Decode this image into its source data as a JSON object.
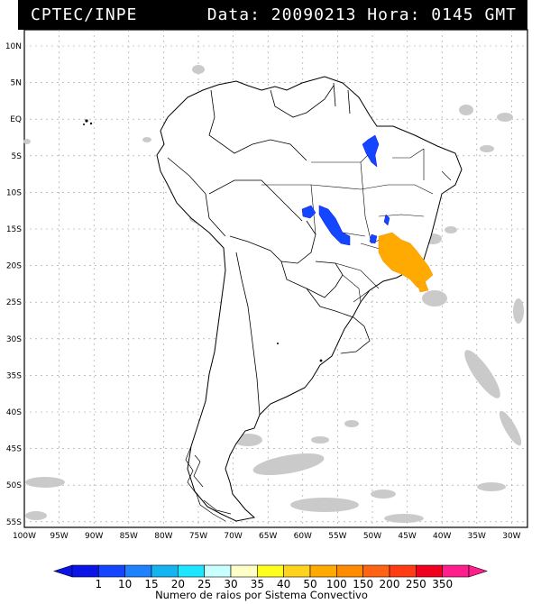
{
  "header": {
    "org": "CPTEC/INPE",
    "datetime": "Data: 20090213 Hora: 0145 GMT"
  },
  "map": {
    "lat_labels": [
      "10N",
      "5N",
      "EQ",
      "5S",
      "10S",
      "15S",
      "20S",
      "25S",
      "30S",
      "35S",
      "40S",
      "45S",
      "50S",
      "55S"
    ],
    "lon_labels": [
      "100W",
      "95W",
      "90W",
      "85W",
      "80W",
      "75W",
      "70W",
      "65W",
      "60W",
      "55W",
      "50W",
      "45W",
      "40W",
      "35W",
      "30W"
    ],
    "cloud_color": "#c8c8c8",
    "coastline_color": "#000000",
    "grid_color": "#999999"
  },
  "legend": {
    "values": [
      "1",
      "10",
      "15",
      "20",
      "25",
      "30",
      "35",
      "40",
      "50",
      "100",
      "150",
      "200",
      "250",
      "350"
    ],
    "colors": [
      "#0a14e6",
      "#1446ff",
      "#1e82ff",
      "#14b4f0",
      "#1ee6ff",
      "#c8ffff",
      "#ffffc8",
      "#ffff1e",
      "#ffd21e",
      "#ffaa00",
      "#ff8c00",
      "#ff6414",
      "#ff3c14",
      "#f0001e",
      "#ff1e8c"
    ],
    "caption": "Numero de raios por Sistema Convectivo"
  }
}
